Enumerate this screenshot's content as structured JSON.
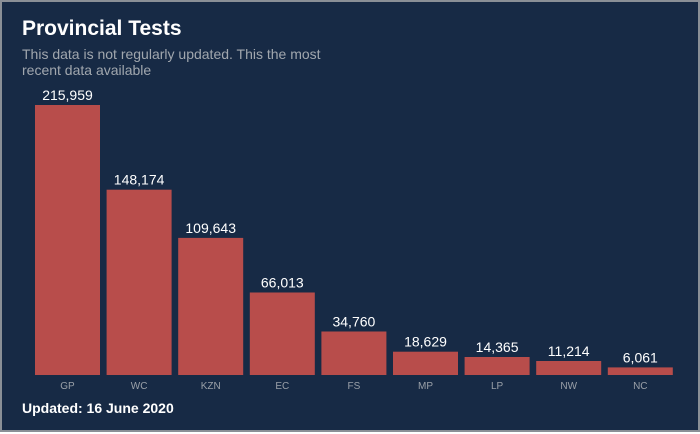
{
  "header": {
    "title": "Provincial Tests",
    "subtitle": "This data is not regularly updated. This the most recent data available"
  },
  "footer": {
    "updated": "Updated: 16 June 2020"
  },
  "colors": {
    "background": "#172a45",
    "bar": "#b84d4b",
    "border": "#8a8f96"
  },
  "chart_data": {
    "type": "bar",
    "title": "Provincial Tests",
    "categories": [
      "GP",
      "WC",
      "KZN",
      "EC",
      "FS",
      "MP",
      "LP",
      "NW",
      "NC"
    ],
    "values": [
      215959,
      148174,
      109643,
      66013,
      34760,
      18629,
      14365,
      11214,
      6061
    ],
    "data_labels": [
      "215,959",
      "148,174",
      "109,643",
      "66,013",
      "34,760",
      "18,629",
      "14,365",
      "11,214",
      "6,061"
    ],
    "xlabel": "",
    "ylabel": "",
    "grid": false,
    "legend": "none"
  }
}
